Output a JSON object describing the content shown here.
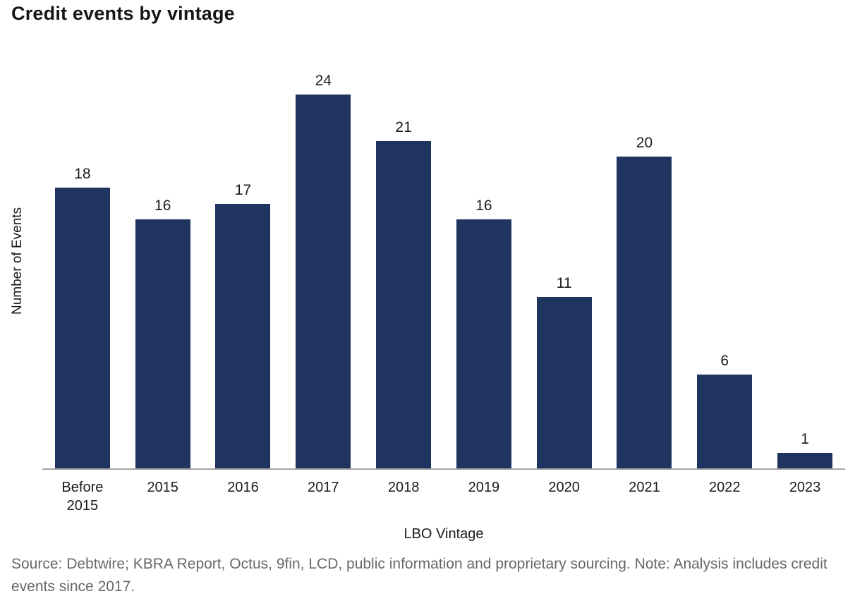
{
  "page": {
    "title": "Credit events by vintage"
  },
  "chart_data": {
    "type": "bar",
    "title": "Credit events by vintage",
    "categories": [
      "Before 2015",
      "2015",
      "2016",
      "2017",
      "2018",
      "2019",
      "2020",
      "2021",
      "2022",
      "2023"
    ],
    "values": [
      18,
      16,
      17,
      24,
      21,
      16,
      11,
      20,
      6,
      1
    ],
    "xlabel": "LBO Vintage",
    "ylabel": "Number of Events",
    "ylim": [
      0,
      24
    ],
    "grid": false,
    "legend": "none",
    "data_labels": true,
    "bar_color": "#1f3560"
  },
  "footer": {
    "source_note": "Source: Debtwire; KBRA Report, Octus, 9fin, LCD, public information and proprietary sourcing. Note: Analysis includes credit events since 2017."
  },
  "colors": {
    "bar": "#1f3560",
    "title_text": "#161616",
    "axis_text": "#1a1a1a",
    "baseline": "#a6a6a6",
    "source_text": "#686868",
    "background": "#ffffff"
  }
}
